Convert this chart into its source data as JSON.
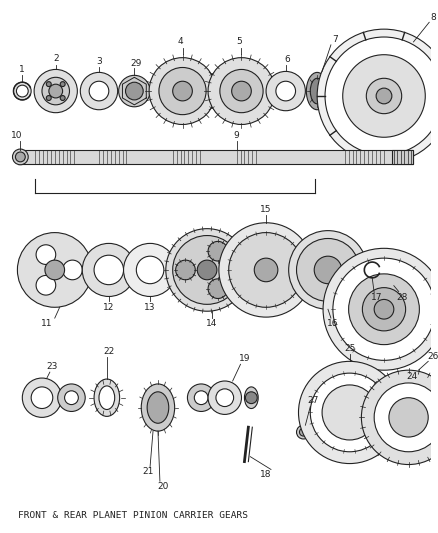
{
  "caption": "FRONT & REAR PLANET PINION CARRIER GEARS",
  "background_color": "#ffffff",
  "line_color": "#222222",
  "fig_width": 4.38,
  "fig_height": 5.33,
  "dpi": 100
}
